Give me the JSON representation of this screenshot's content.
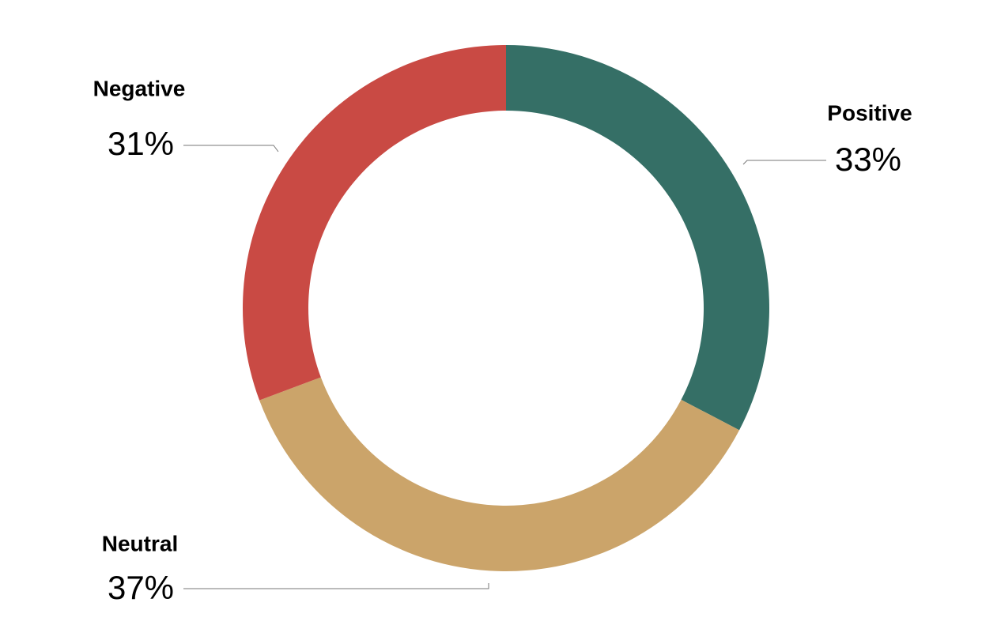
{
  "chart_data": {
    "type": "donut",
    "series": [
      {
        "name": "Positive",
        "color": "#356f66",
        "values": [
          33
        ],
        "value_labels": [
          "33%"
        ]
      },
      {
        "name": "Neutral",
        "color": "#cba46a",
        "values": [
          37
        ],
        "value_labels": [
          "37%"
        ]
      },
      {
        "name": "Negative",
        "color": "#c94a44",
        "values": [
          31
        ],
        "value_labels": [
          "31%"
        ]
      }
    ]
  }
}
